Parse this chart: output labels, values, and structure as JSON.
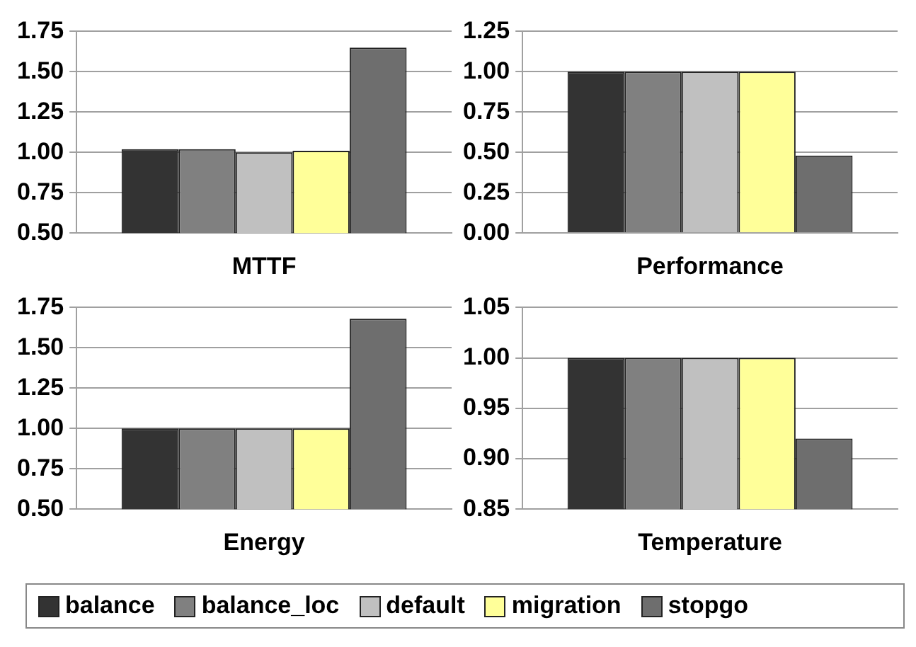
{
  "chart_data": [
    {
      "type": "bar",
      "title": "MTTF",
      "categories": [
        null
      ],
      "series": [
        {
          "color": "#333333",
          "values": [
            1.02
          ]
        },
        {
          "color": "#808080",
          "values": [
            1.02
          ]
        },
        {
          "color": "#c0c0c0",
          "values": [
            1.0
          ]
        },
        {
          "color": "#ffff99",
          "values": [
            1.01
          ]
        },
        {
          "color": "#6e6e6e",
          "values": [
            1.65
          ]
        }
      ],
      "ylim": [
        0.5,
        1.75
      ],
      "yticks": [
        {
          "value": 0.5,
          "label": "0.50"
        },
        {
          "value": 0.75,
          "label": "0.75"
        },
        {
          "value": 1.0,
          "label": "1.00"
        },
        {
          "value": 1.25,
          "label": "1.25"
        },
        {
          "value": 1.5,
          "label": "1.50"
        },
        {
          "value": 1.75,
          "label": "1.75"
        }
      ],
      "grid": "y"
    },
    {
      "type": "bar",
      "title": "Performance",
      "categories": [
        null
      ],
      "series": [
        {
          "color": "#333333",
          "values": [
            1.0
          ]
        },
        {
          "color": "#808080",
          "values": [
            1.0
          ]
        },
        {
          "color": "#c0c0c0",
          "values": [
            1.0
          ]
        },
        {
          "color": "#ffff99",
          "values": [
            1.0
          ]
        },
        {
          "color": "#6e6e6e",
          "values": [
            0.48
          ]
        }
      ],
      "ylim": [
        0,
        1.25
      ],
      "yticks": [
        {
          "value": 0,
          "label": "0.00"
        },
        {
          "value": 0.25,
          "label": "0.25"
        },
        {
          "value": 0.5,
          "label": "0.50"
        },
        {
          "value": 0.75,
          "label": "0.75"
        },
        {
          "value": 1.0,
          "label": "1.00"
        },
        {
          "value": 1.25,
          "label": "1.25"
        }
      ],
      "grid": "y"
    },
    {
      "type": "bar",
      "title": "Energy",
      "categories": [
        null
      ],
      "series": [
        {
          "color": "#333333",
          "values": [
            1.0
          ]
        },
        {
          "color": "#808080",
          "values": [
            1.0
          ]
        },
        {
          "color": "#c0c0c0",
          "values": [
            1.0
          ]
        },
        {
          "color": "#ffff99",
          "values": [
            1.0
          ]
        },
        {
          "color": "#6e6e6e",
          "values": [
            1.68
          ]
        }
      ],
      "ylim": [
        0.5,
        1.75
      ],
      "yticks": [
        {
          "value": 0.5,
          "label": "0.50"
        },
        {
          "value": 0.75,
          "label": "0.75"
        },
        {
          "value": 1.0,
          "label": "1.00"
        },
        {
          "value": 1.25,
          "label": "1.25"
        },
        {
          "value": 1.5,
          "label": "1.50"
        },
        {
          "value": 1.75,
          "label": "1.75"
        }
      ],
      "grid": "y"
    },
    {
      "type": "bar",
      "title": "Temperature",
      "categories": [
        null
      ],
      "series": [
        {
          "name": "balance",
          "color": "#333333",
          "values": [
            1.0
          ]
        },
        {
          "name": "balance_loc",
          "color": "#808080",
          "values": [
            1.0
          ]
        },
        {
          "name": "default",
          "color": "#c0c0c0",
          "values": [
            1.0
          ]
        },
        {
          "name": "migration",
          "color": "#ffff99",
          "values": [
            1.0
          ]
        },
        {
          "name": "stopgo",
          "color": "#6e6e6e",
          "values": [
            0.92
          ]
        }
      ],
      "ylim": [
        0.85,
        1.05
      ],
      "yticks": [
        {
          "value": 0.85,
          "label": "0.85"
        },
        {
          "value": 0.9,
          "label": "0.90"
        },
        {
          "value": 0.95,
          "label": "0.95"
        },
        {
          "value": 1.0,
          "label": "1.00"
        },
        {
          "value": 1.05,
          "label": "1.05"
        }
      ],
      "grid": "y",
      "legend": "bottom"
    }
  ]
}
